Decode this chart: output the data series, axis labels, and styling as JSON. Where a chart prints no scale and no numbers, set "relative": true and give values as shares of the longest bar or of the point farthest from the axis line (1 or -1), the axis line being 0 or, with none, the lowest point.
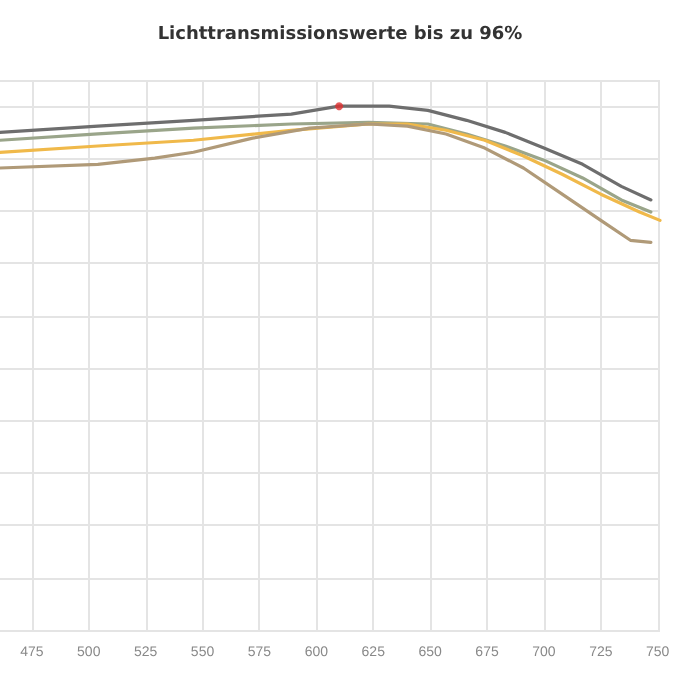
{
  "chart_data": {
    "type": "line",
    "title": "Lichttransmissionswerte bis zu 96%",
    "relative": true,
    "xlim": [
      461,
      751
    ],
    "xticks": [
      475,
      500,
      525,
      550,
      575,
      600,
      625,
      650,
      675,
      700,
      725,
      750
    ],
    "grid": true,
    "marker": "none",
    "line_style": "solid",
    "series": [
      {
        "color": "#6e6e6e",
        "x": [
          461,
          504,
          546,
          589,
          610,
          632,
          649,
          666,
          683,
          700,
          717,
          734,
          747
        ],
        "values": [
          0.95,
          0.962,
          0.973,
          0.985,
          1.0,
          1.0,
          0.992,
          0.973,
          0.95,
          0.92,
          0.889,
          0.847,
          0.821
        ]
      },
      {
        "color": "#9aa58a",
        "x": [
          461,
          504,
          546,
          589,
          623,
          649,
          666,
          683,
          700,
          717,
          734,
          747
        ],
        "values": [
          0.935,
          0.947,
          0.958,
          0.966,
          0.969,
          0.966,
          0.947,
          0.924,
          0.897,
          0.863,
          0.821,
          0.798
        ]
      },
      {
        "color": "#f0b94a",
        "x": [
          461,
          504,
          546,
          589,
          623,
          640,
          657,
          674,
          691,
          708,
          725,
          742,
          751
        ],
        "values": [
          0.912,
          0.924,
          0.935,
          0.954,
          0.966,
          0.966,
          0.954,
          0.935,
          0.905,
          0.87,
          0.832,
          0.798,
          0.782
        ]
      },
      {
        "color": "#b09a78",
        "x": [
          461,
          504,
          529,
          546,
          572,
          597,
          623,
          640,
          657,
          674,
          691,
          708,
          725,
          738,
          747
        ],
        "values": [
          0.882,
          0.889,
          0.901,
          0.912,
          0.939,
          0.958,
          0.966,
          0.962,
          0.947,
          0.92,
          0.882,
          0.832,
          0.782,
          0.744,
          0.74
        ]
      },
      {
        "type": "scatter",
        "color": "#e03030",
        "marker": "circle",
        "x": [
          610
        ],
        "values": [
          1.0
        ]
      }
    ]
  }
}
